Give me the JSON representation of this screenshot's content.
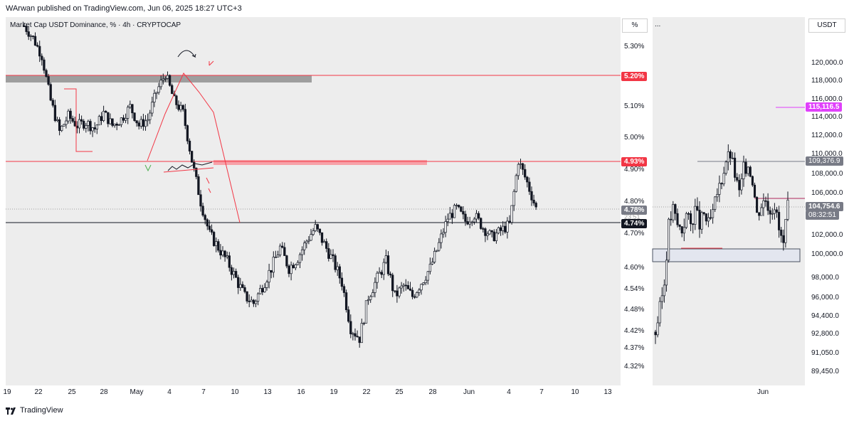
{
  "header": {
    "published_line": "WArwan published on TradingView.com, Jun 06, 2025 18:27 UTC+3"
  },
  "left_chart": {
    "title": "Market Cap USDT Dominance, % · 4h · CRYPTOCAP",
    "unit_button": "%",
    "price_ticks": [
      "5.30%",
      "5.10%",
      "5.00%",
      "4.90%",
      "4.80%",
      "4.70%",
      "4.60%",
      "4.54%",
      "4.48%",
      "4.42%",
      "4.37%",
      "4.32%"
    ],
    "tags": {
      "resistance": "5.20%",
      "mid": "4.93%",
      "last": "4.78%",
      "countdown_partial": "23:51",
      "support": "4.74%"
    },
    "x_ticks": [
      "19",
      "22",
      "25",
      "28",
      "May",
      "4",
      "7",
      "10",
      "13",
      "16",
      "19",
      "22",
      "25",
      "28",
      "Jun",
      "4",
      "7",
      "10",
      "13"
    ],
    "colors": {
      "resistance": "#f23645",
      "last": "#787b86",
      "support": "#131722",
      "zone": "#9e9e9e",
      "pink_zone": "#f7a1a8"
    }
  },
  "right_chart": {
    "dots_button": "...",
    "currency_button": "USDT",
    "price_ticks": [
      "120,000.0",
      "118,000.0",
      "116,000.0",
      "114,000.0",
      "112,000.0",
      "110,000.0",
      "108,000.0",
      "106,000.0",
      "102,000.0",
      "100,000.0",
      "98,000.0",
      "96,000.0",
      "94,400.0",
      "92,800.0",
      "91,050.0",
      "89,450.0"
    ],
    "tags": {
      "magenta": "115,116.5",
      "gray_line": "109,376.9",
      "last": "104,754.6",
      "countdown": "08:32:51"
    },
    "x_ticks": [
      "Jun"
    ],
    "colors": {
      "magenta": "#e040fb",
      "last": "#787b86",
      "gray_line": "#787b86"
    }
  },
  "footer": {
    "brand": "TradingView",
    "logo_icon": "tradingview-logo-icon"
  },
  "chart_data": [
    {
      "type": "candlestick",
      "title": "Market Cap USDT Dominance, % · 4h · CRYPTOCAP",
      "ylabel": "%",
      "x_range": [
        "19",
        "13"
      ],
      "ylim": [
        4.3,
        5.37
      ],
      "levels": [
        5.2,
        4.93,
        4.78,
        4.74
      ],
      "path_points": [
        [
          0,
          5.37
        ],
        [
          2,
          5.33
        ],
        [
          4,
          5.27
        ],
        [
          6,
          5.12
        ],
        [
          8,
          5.02
        ],
        [
          10,
          5.07
        ],
        [
          12,
          5.04
        ],
        [
          14,
          5.05
        ],
        [
          16,
          5.03
        ],
        [
          18,
          5.08
        ],
        [
          20,
          5.04
        ],
        [
          22,
          5.06
        ],
        [
          24,
          5.1
        ],
        [
          26,
          5.04
        ],
        [
          28,
          5.06
        ],
        [
          30,
          5.15
        ],
        [
          32,
          5.21
        ],
        [
          34,
          5.12
        ],
        [
          36,
          5.08
        ],
        [
          38,
          4.93
        ],
        [
          40,
          4.8
        ],
        [
          42,
          4.7
        ],
        [
          44,
          4.66
        ],
        [
          46,
          4.62
        ],
        [
          48,
          4.57
        ],
        [
          50,
          4.52
        ],
        [
          52,
          4.5
        ],
        [
          54,
          4.55
        ],
        [
          56,
          4.6
        ],
        [
          58,
          4.66
        ],
        [
          60,
          4.6
        ],
        [
          62,
          4.63
        ],
        [
          64,
          4.68
        ],
        [
          66,
          4.72
        ],
        [
          68,
          4.67
        ],
        [
          70,
          4.62
        ],
        [
          72,
          4.56
        ],
        [
          74,
          4.43
        ],
        [
          76,
          4.4
        ],
        [
          78,
          4.52
        ],
        [
          80,
          4.57
        ],
        [
          82,
          4.62
        ],
        [
          84,
          4.52
        ],
        [
          86,
          4.55
        ],
        [
          88,
          4.52
        ],
        [
          90,
          4.56
        ],
        [
          92,
          4.6
        ],
        [
          94,
          4.67
        ],
        [
          96,
          4.75
        ],
        [
          98,
          4.78
        ],
        [
          100,
          4.74
        ],
        [
          102,
          4.76
        ],
        [
          104,
          4.72
        ],
        [
          106,
          4.69
        ],
        [
          108,
          4.71
        ],
        [
          110,
          4.73
        ],
        [
          112,
          4.93
        ],
        [
          114,
          4.86
        ],
        [
          116,
          4.78
        ]
      ]
    },
    {
      "type": "candlestick",
      "ylabel": "USDT",
      "ylim": [
        89450,
        120000
      ],
      "levels": [
        115116.5,
        109376.9,
        104754.6
      ],
      "path_points": [
        [
          0,
          93000
        ],
        [
          2,
          95000
        ],
        [
          4,
          97500
        ],
        [
          6,
          103000
        ],
        [
          8,
          104500
        ],
        [
          10,
          103000
        ],
        [
          12,
          102500
        ],
        [
          14,
          104000
        ],
        [
          16,
          103000
        ],
        [
          18,
          104500
        ],
        [
          20,
          103000
        ],
        [
          22,
          104000
        ],
        [
          24,
          103000
        ],
        [
          26,
          104000
        ],
        [
          28,
          106000
        ],
        [
          30,
          107500
        ],
        [
          32,
          109500
        ],
        [
          34,
          110000
        ],
        [
          36,
          108000
        ],
        [
          38,
          106000
        ],
        [
          40,
          108500
        ],
        [
          42,
          109000
        ],
        [
          44,
          107500
        ],
        [
          46,
          104000
        ],
        [
          48,
          105000
        ],
        [
          50,
          105500
        ],
        [
          52,
          104500
        ],
        [
          54,
          105000
        ],
        [
          56,
          102500
        ],
        [
          58,
          101000
        ],
        [
          60,
          104754.6
        ]
      ]
    }
  ]
}
